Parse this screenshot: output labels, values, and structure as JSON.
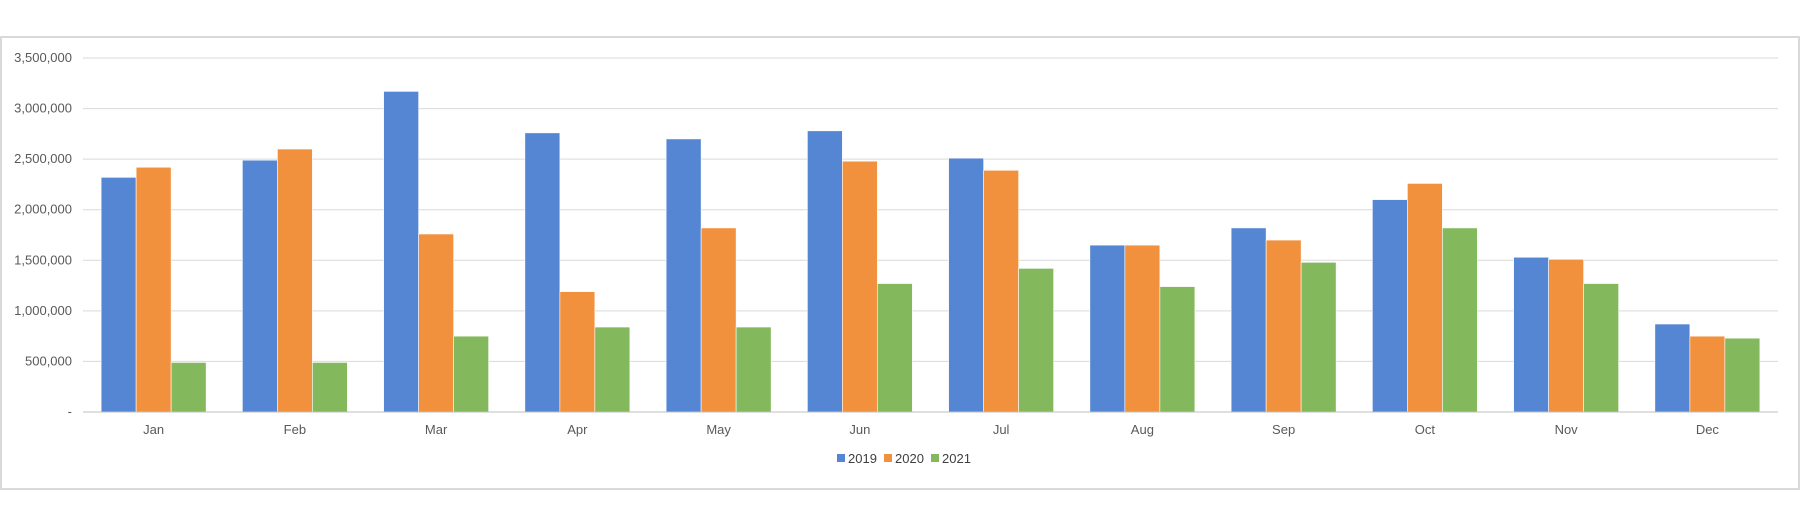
{
  "chart_data": {
    "type": "bar",
    "title": "",
    "xlabel": "",
    "ylabel": "",
    "categories": [
      "Jan",
      "Feb",
      "Mar",
      "Apr",
      "May",
      "Jun",
      "Jul",
      "Aug",
      "Sep",
      "Oct",
      "Nov",
      "Dec"
    ],
    "series": [
      {
        "name": "2019",
        "color": "#5586d3",
        "values": [
          2320000,
          2490000,
          3170000,
          2760000,
          2700000,
          2780000,
          2510000,
          1650000,
          1820000,
          2100000,
          1530000,
          870000
        ]
      },
      {
        "name": "2020",
        "color": "#f2913d",
        "values": [
          2420000,
          2600000,
          1760000,
          1190000,
          1820000,
          2480000,
          2390000,
          1650000,
          1700000,
          2260000,
          1510000,
          750000
        ]
      },
      {
        "name": "2021",
        "color": "#84b85c",
        "values": [
          490000,
          490000,
          750000,
          840000,
          840000,
          1270000,
          1420000,
          1240000,
          1480000,
          1820000,
          1270000,
          730000
        ]
      }
    ],
    "ylim": [
      0,
      3500000
    ],
    "yticks": [
      {
        "value": 0,
        "label": "-"
      },
      {
        "value": 500000,
        "label": "500,000"
      },
      {
        "value": 1000000,
        "label": "1,000,000"
      },
      {
        "value": 1500000,
        "label": "1,500,000"
      },
      {
        "value": 2000000,
        "label": "2,000,000"
      },
      {
        "value": 2500000,
        "label": "2,500,000"
      },
      {
        "value": 3000000,
        "label": "3,000,000"
      },
      {
        "value": 3500000,
        "label": "3,500,000"
      }
    ],
    "grid": true,
    "legend_position": "bottom-center",
    "colors": {
      "gridline": "#d9d9d9",
      "axis": "#bfbfbf"
    }
  }
}
